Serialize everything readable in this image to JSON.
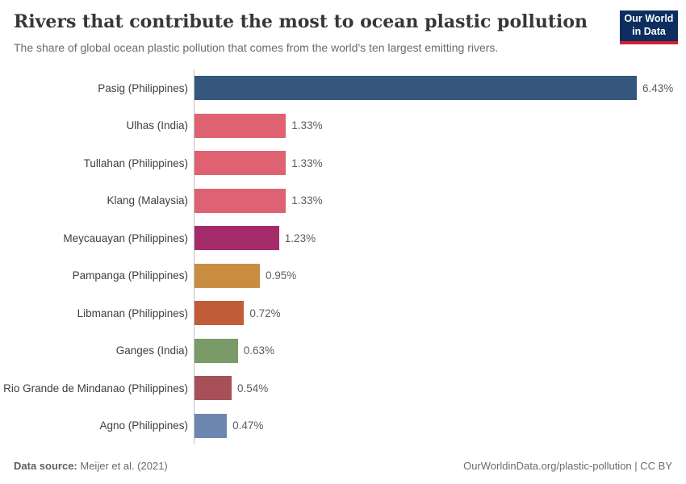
{
  "header": {
    "title": "Rivers that contribute the most to ocean plastic pollution",
    "subtitle": "The share of global ocean plastic pollution that comes from the world's ten largest emitting rivers.",
    "logo": {
      "line1": "Our World",
      "line2": "in Data",
      "bg_color": "#0d2e5e",
      "accent_color": "#d42032"
    }
  },
  "chart_data": {
    "type": "bar",
    "orientation": "horizontal",
    "title": "Rivers that contribute the most to ocean plastic pollution",
    "subtitle": "The share of global ocean plastic pollution that comes from the world's ten largest emitting rivers.",
    "categories": [
      "Pasig (Philippines)",
      "Ulhas (India)",
      "Tullahan (Philippines)",
      "Klang (Malaysia)",
      "Meycauayan (Philippines)",
      "Pampanga (Philippines)",
      "Libmanan (Philippines)",
      "Ganges (India)",
      "Rio Grande de Mindanao (Philippines)",
      "Agno (Philippines)"
    ],
    "values": [
      6.43,
      1.33,
      1.33,
      1.33,
      1.23,
      0.95,
      0.72,
      0.63,
      0.54,
      0.47
    ],
    "value_labels": [
      "6.43%",
      "1.33%",
      "1.33%",
      "1.33%",
      "1.23%",
      "0.95%",
      "0.72%",
      "0.63%",
      "0.54%",
      "0.47%"
    ],
    "bar_colors": [
      "#35577d",
      "#de6271",
      "#de6271",
      "#de6271",
      "#a52c6a",
      "#c98d42",
      "#c15c39",
      "#7a9a68",
      "#a85058",
      "#6e87b0"
    ],
    "unit": "%",
    "xlim": [
      0,
      6.43
    ],
    "grid": "off",
    "legend": "none",
    "axis_line_color": "#bfbfbf"
  },
  "footer": {
    "source_label": "Data source:",
    "source_value": "Meijer et al. (2021)",
    "link": "OurWorldinData.org/plastic-pollution | CC BY"
  }
}
